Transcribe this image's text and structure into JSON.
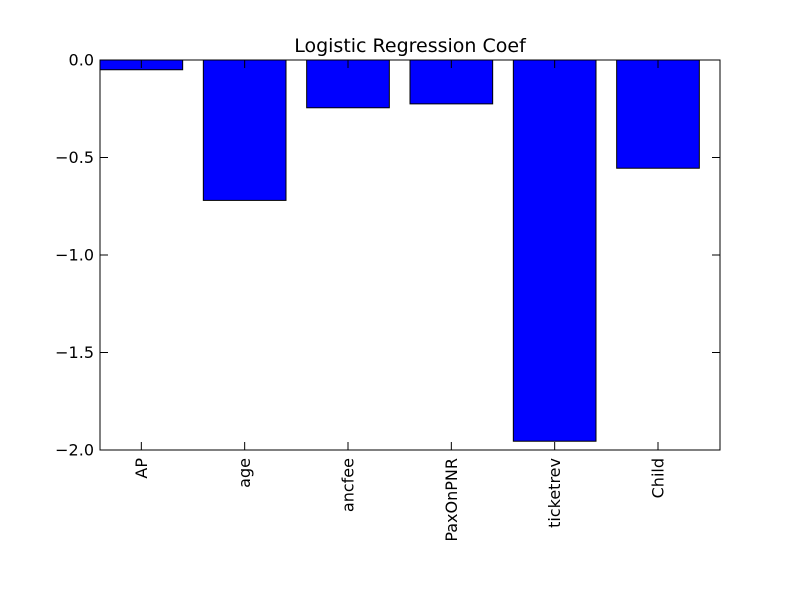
{
  "chart_data": {
    "type": "bar",
    "title": "Logistic Regression Coef",
    "xlabel": "",
    "ylabel": "",
    "categories": [
      "AP",
      "age",
      "ancfee",
      "PaxOnPNR",
      "ticketrev",
      "Child"
    ],
    "values": [
      -0.05,
      -0.72,
      -0.245,
      -0.225,
      -1.955,
      -0.555
    ],
    "ylim": [
      -2.0,
      0.0
    ],
    "yticks": [
      0.0,
      -0.5,
      -1.0,
      -1.5,
      -2.0
    ],
    "ytick_labels": [
      "0.0",
      "−0.5",
      "−1.0",
      "−1.5",
      "−2.0"
    ],
    "bar_color": "#0000ff",
    "edge_color": "#000000",
    "grid": false,
    "legend": "none"
  }
}
